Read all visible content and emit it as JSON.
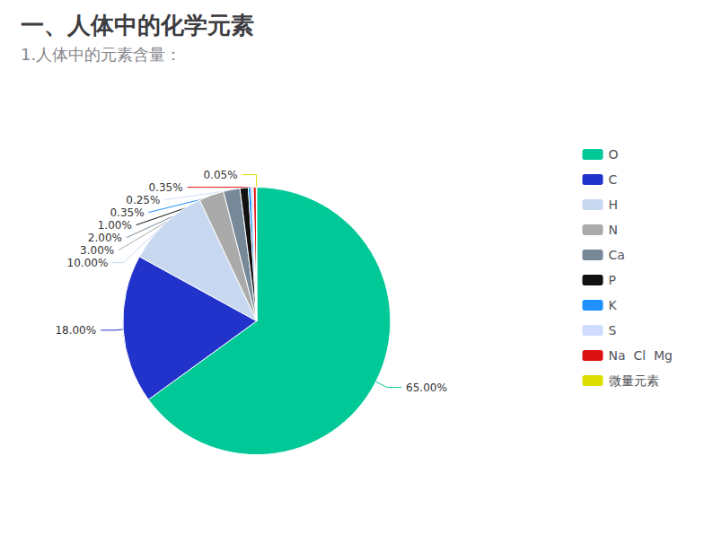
{
  "chart_data": {
    "type": "pie",
    "title": "一、人体中的化学元素",
    "subtitle": "1.人体中的元素含量：",
    "categories": [
      "O",
      "C",
      "H",
      "N",
      "Ca",
      "P",
      "K",
      "S",
      "Na  Cl  Mg",
      "微量元素"
    ],
    "values": [
      65.0,
      18.0,
      10.0,
      3.0,
      2.0,
      1.0,
      0.35,
      0.25,
      0.35,
      0.05
    ],
    "value_labels": [
      "65.00%",
      "18.00%",
      "10.00%",
      "3.00%",
      "2.00%",
      "1.00%",
      "0.35%",
      "0.25%",
      "0.35%",
      "0.05%"
    ],
    "colors": [
      "#00C896",
      "#2233CC",
      "#C8D8F0",
      "#AAAAAA",
      "#778899",
      "#111111",
      "#1E90FF",
      "#D0DCFF",
      "#DD1111",
      "#DDDD00"
    ],
    "data_labels": true,
    "legend": "right"
  }
}
